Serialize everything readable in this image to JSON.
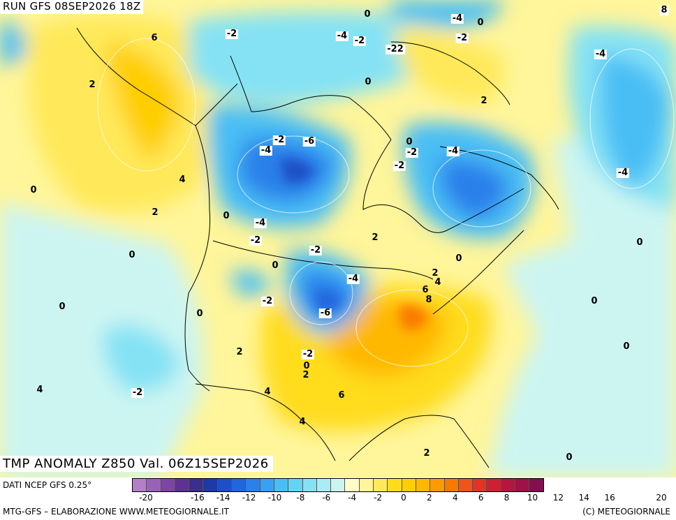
{
  "header": {
    "run_label": "RUN GFS 08SEP2026 18Z",
    "variable_label": "TMP ANOMALY Z850 Val. 06Z15SEP2026"
  },
  "footer": {
    "source": "DATI NCEP GFS 0.25°",
    "credit_left": "MTG-GFS – ELABORAZIONE WWW.METEOGIORNALE.IT",
    "credit_right": "(C) METEOGIORNALE"
  },
  "legend": {
    "colors": [
      "#b57fc8",
      "#9a61b8",
      "#7d45a6",
      "#5e3293",
      "#3a2f8e",
      "#1f3aa6",
      "#1d4fc6",
      "#2266dd",
      "#2b80ea",
      "#3aa0f2",
      "#49bef5",
      "#62d4f5",
      "#84e2f4",
      "#a8edf3",
      "#ccf5f2",
      "#fffdc7",
      "#fff59a",
      "#ffe95a",
      "#ffdc1c",
      "#ffce00",
      "#ffb800",
      "#ff9a00",
      "#f97a00",
      "#ef5518",
      "#e33325",
      "#cf1f33",
      "#b51640",
      "#9c1249",
      "#820f4f"
    ],
    "tick_labels": [
      "-20",
      "-18",
      "-16",
      "-14",
      "-12",
      "-10",
      "-8",
      "-6",
      "-4",
      "-2",
      "0",
      "2",
      "4",
      "6",
      "8",
      "10",
      "12",
      "14",
      "16",
      "18",
      "20"
    ],
    "visible_tick_labels": [
      "-20",
      "-16",
      "-14",
      "-12",
      "-10",
      "-8",
      "-6",
      "-4",
      "-2",
      "0",
      "2",
      "4",
      "6",
      "8",
      "10",
      "12",
      "14",
      "16",
      "20"
    ]
  },
  "contour_labels": [
    {
      "text": "8",
      "id": "l1"
    },
    {
      "text": "-4",
      "id": "l2"
    },
    {
      "text": "0",
      "id": "l3"
    },
    {
      "text": "-2",
      "id": "l4"
    },
    {
      "text": "-2",
      "id": "l5"
    },
    {
      "text": "-4",
      "id": "l6"
    },
    {
      "text": "-2",
      "id": "l7"
    },
    {
      "text": "-22",
      "id": "l8"
    },
    {
      "text": "6",
      "id": "l9"
    },
    {
      "text": "-4",
      "id": "l10"
    },
    {
      "text": "0",
      "id": "l11"
    },
    {
      "text": "2",
      "id": "l12"
    },
    {
      "text": "2",
      "id": "l13"
    },
    {
      "text": "-2",
      "id": "l14"
    },
    {
      "text": "-6",
      "id": "l15"
    },
    {
      "text": "-4",
      "id": "l16"
    },
    {
      "text": "0",
      "id": "l17"
    },
    {
      "text": "-2",
      "id": "l18"
    },
    {
      "text": "-4",
      "id": "l19"
    },
    {
      "text": "-2",
      "id": "l20"
    },
    {
      "text": "4",
      "id": "l21"
    },
    {
      "text": "0",
      "id": "l22"
    },
    {
      "text": "-4",
      "id": "l23"
    },
    {
      "text": "2",
      "id": "l24"
    },
    {
      "text": "0",
      "id": "l25"
    },
    {
      "text": "-4",
      "id": "l26"
    },
    {
      "text": "-2",
      "id": "l27"
    },
    {
      "text": "2",
      "id": "l28"
    },
    {
      "text": "0",
      "id": "l29"
    },
    {
      "text": "0",
      "id": "l30"
    },
    {
      "text": "-2",
      "id": "l31"
    },
    {
      "text": "0",
      "id": "l32"
    },
    {
      "text": "0",
      "id": "l33"
    },
    {
      "text": "2",
      "id": "l34"
    },
    {
      "text": "4",
      "id": "l35"
    },
    {
      "text": "-4",
      "id": "l36"
    },
    {
      "text": "6",
      "id": "l37"
    },
    {
      "text": "8",
      "id": "l38"
    },
    {
      "text": "0",
      "id": "l39"
    },
    {
      "text": "-2",
      "id": "l40"
    },
    {
      "text": "-6",
      "id": "l41"
    },
    {
      "text": "0",
      "id": "l42"
    },
    {
      "text": "0",
      "id": "l43"
    },
    {
      "text": "0",
      "id": "l44"
    },
    {
      "text": "2",
      "id": "l45"
    },
    {
      "text": "-2",
      "id": "l46"
    },
    {
      "text": "0",
      "id": "l47"
    },
    {
      "text": "2",
      "id": "l48"
    },
    {
      "text": "4",
      "id": "l49"
    },
    {
      "text": "-2",
      "id": "l50"
    },
    {
      "text": "4",
      "id": "l51"
    },
    {
      "text": "6",
      "id": "l52"
    },
    {
      "text": "4",
      "id": "l53"
    },
    {
      "text": "2",
      "id": "l54"
    },
    {
      "text": "0",
      "id": "l55"
    },
    {
      "text": "0",
      "id": "l56"
    }
  ]
}
